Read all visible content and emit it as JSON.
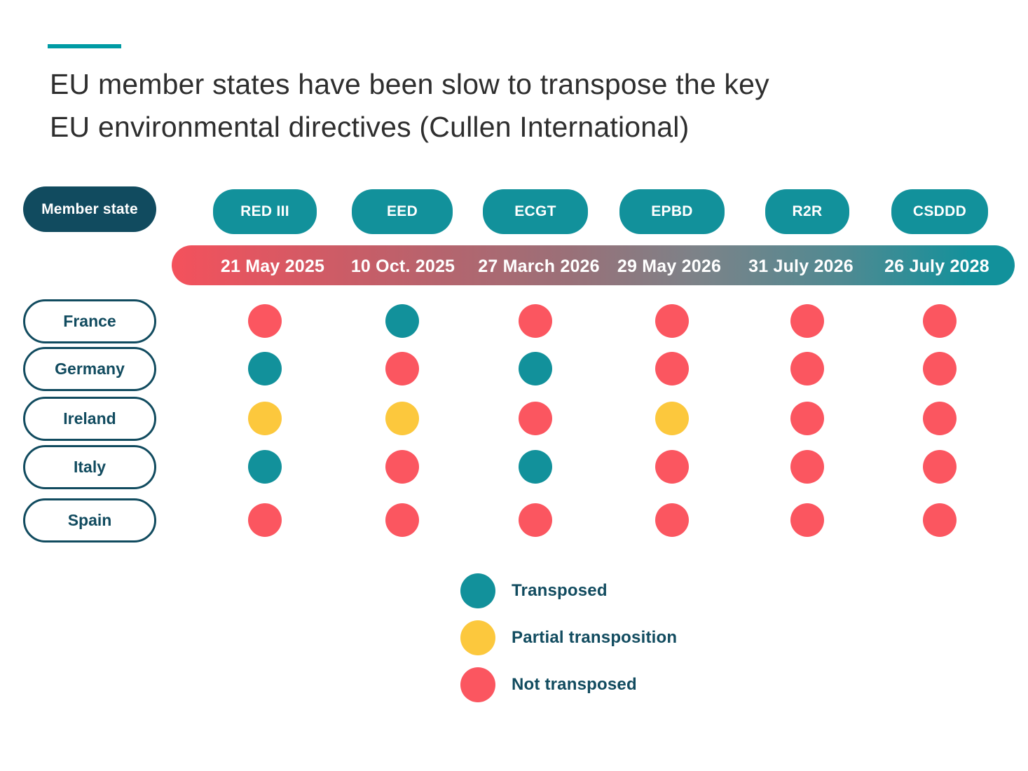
{
  "page": {
    "title_line1": "EU member states have been slow to transpose the key",
    "title_line2": "EU environmental directives (Cullen International)"
  },
  "header": {
    "member_state_label": "Member state",
    "directives": [
      "RED III",
      "EED",
      "ECGT",
      "EPBD",
      "R2R",
      "CSDDD"
    ],
    "deadlines": [
      "21 May 2025",
      "10 Oct. 2025",
      "27 March 2026",
      "29 May 2026",
      "31 July 2026",
      "26 July 2028"
    ]
  },
  "matrix": {
    "countries": [
      "France",
      "Germany",
      "Ireland",
      "Italy",
      "Spain"
    ],
    "statuses": [
      [
        "not",
        "transposed",
        "not",
        "not",
        "not",
        "not"
      ],
      [
        "transposed",
        "not",
        "transposed",
        "not",
        "not",
        "not"
      ],
      [
        "partial",
        "partial",
        "not",
        "partial",
        "not",
        "not"
      ],
      [
        "transposed",
        "not",
        "transposed",
        "not",
        "not",
        "not"
      ],
      [
        "not",
        "not",
        "not",
        "not",
        "not",
        "not"
      ]
    ]
  },
  "legend": [
    {
      "key": "transposed",
      "label": "Transposed"
    },
    {
      "key": "partial",
      "label": "Partial transposition"
    },
    {
      "key": "not",
      "label": "Not transposed"
    }
  ],
  "colors": {
    "transposed": "#12919B",
    "partial": "#FCC83D",
    "not": "#FB5660",
    "navy_pill": "#114B5F",
    "accent_line": "#009BA4",
    "timeline_gradient_start": "#F4515C",
    "timeline_gradient_end": "#12919B",
    "title_text": "#2E2E2E"
  },
  "chart_data": {
    "type": "heatmap",
    "title": "EU member states have been slow to transpose the key EU environmental directives (Cullen International)",
    "source": "Cullen International",
    "columns": [
      "RED III",
      "EED",
      "ECGT",
      "EPBD",
      "R2R",
      "CSDDD"
    ],
    "column_deadlines": [
      "21 May 2025",
      "10 Oct. 2025",
      "27 March 2026",
      "29 May 2026",
      "31 July 2026",
      "26 July 2028"
    ],
    "rows": [
      "France",
      "Germany",
      "Ireland",
      "Italy",
      "Spain"
    ],
    "values": [
      [
        "Not transposed",
        "Transposed",
        "Not transposed",
        "Not transposed",
        "Not transposed",
        "Not transposed"
      ],
      [
        "Transposed",
        "Not transposed",
        "Transposed",
        "Not transposed",
        "Not transposed",
        "Not transposed"
      ],
      [
        "Partial transposition",
        "Partial transposition",
        "Not transposed",
        "Partial transposition",
        "Not transposed",
        "Not transposed"
      ],
      [
        "Transposed",
        "Not transposed",
        "Transposed",
        "Not transposed",
        "Not transposed",
        "Not transposed"
      ],
      [
        "Not transposed",
        "Not transposed",
        "Not transposed",
        "Not transposed",
        "Not transposed",
        "Not transposed"
      ]
    ],
    "legend_entries": [
      "Transposed",
      "Partial transposition",
      "Not transposed"
    ],
    "legend_position": "bottom-center",
    "grid": false
  }
}
